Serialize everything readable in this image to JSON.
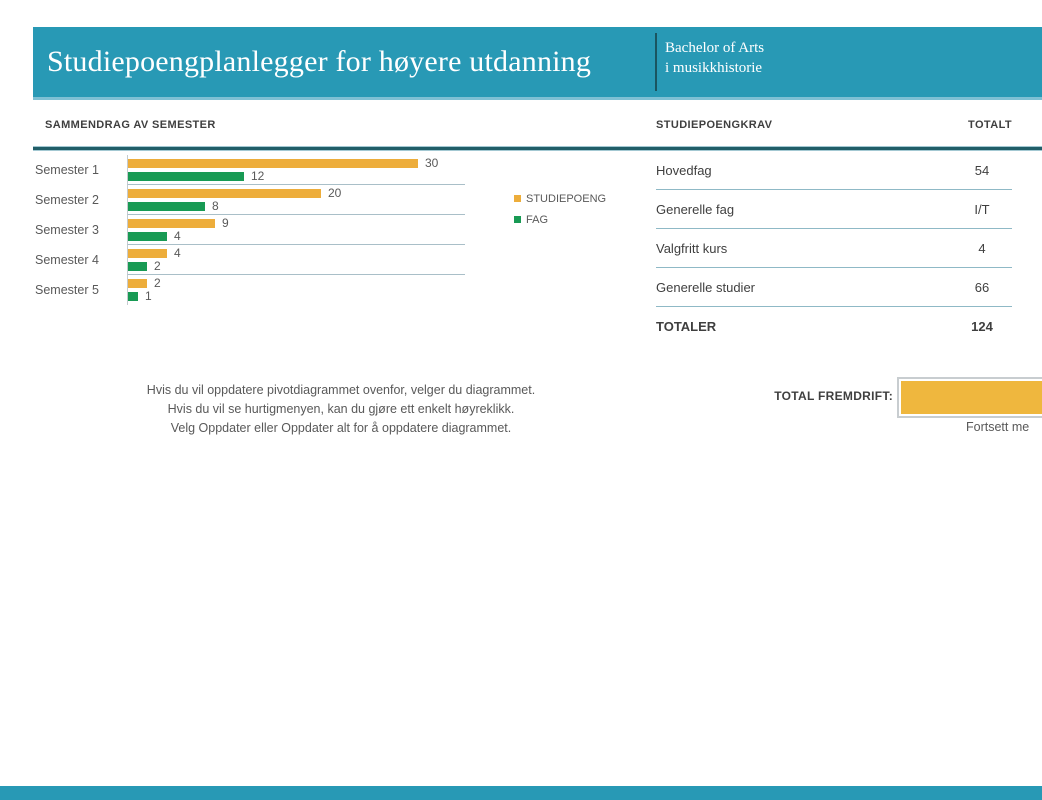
{
  "header": {
    "title": "Studiepoengplanlegger for høyere utdanning",
    "degree_line1": "Bachelor of Arts",
    "degree_line2": "i musikkhistorie"
  },
  "left_section": {
    "heading": "SAMMENDRAG AV SEMESTER",
    "instructions": [
      "Hvis du vil oppdatere pivotdiagrammet ovenfor, velger du diagrammet.",
      "Hvis du vil se hurtigmenyen, kan du gjøre ett enkelt høyreklikk.",
      "Velg Oppdater eller Oppdater alt for å oppdatere diagrammet."
    ]
  },
  "chart_data": {
    "type": "bar",
    "orientation": "horizontal",
    "title": "",
    "categories": [
      "Semester 1",
      "Semester 2",
      "Semester 3",
      "Semester 4",
      "Semester 5"
    ],
    "series": [
      {
        "name": "STUDIEPOENG",
        "color": "#EDAD3B",
        "values": [
          30,
          20,
          9,
          4,
          2
        ]
      },
      {
        "name": "FAG",
        "color": "#189A54",
        "values": [
          12,
          8,
          4,
          2,
          1
        ]
      }
    ],
    "xlim": [
      0,
      35
    ],
    "grid": "category-separators",
    "data_labels": true,
    "legend_position": "right"
  },
  "requirements_table": {
    "heading": "STUDIEPOENGKRAV",
    "total_column_label": "TOTALT",
    "rows": [
      {
        "label": "Hovedfag",
        "value": "54"
      },
      {
        "label": "Generelle fag",
        "value": "I/T"
      },
      {
        "label": "Valgfritt kurs",
        "value": "4"
      },
      {
        "label": "Generelle studier",
        "value": "66"
      }
    ],
    "total_row": {
      "label": "TOTALER",
      "value": "124"
    }
  },
  "progress": {
    "label": "TOTAL FREMDRIFT:",
    "value_percent": 100,
    "bar_color": "#EFB73E",
    "caption": "Fortsett me"
  },
  "colors": {
    "banner_teal": "#2899B5",
    "banner_edge_light": "#7EC0D4",
    "rule_dark": "#215E68",
    "rule_light": "#A3C8D2",
    "gold": "#EDAD3B",
    "green": "#189A54",
    "chart_separator": "#A9BFC8",
    "table_line": "#8FB9C6",
    "text_gray": "#595959",
    "text_dark": "#3F3F3F",
    "progress_border": "#C8CDD0"
  }
}
